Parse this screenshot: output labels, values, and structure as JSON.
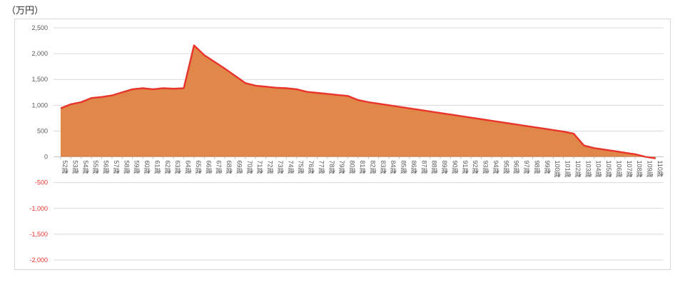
{
  "unit_label": "（万円）",
  "chart_data": {
    "type": "area",
    "title": "",
    "xlabel": "",
    "ylabel": "",
    "ylim": [
      -2000,
      2500
    ],
    "y_ticks": [
      2500,
      2000,
      1500,
      1000,
      500,
      0,
      -500,
      -1000,
      -1500,
      -2000
    ],
    "y_tick_labels": [
      "2,500",
      "2,000",
      "1,500",
      "1,000",
      "500",
      "0",
      "-500",
      "-1,000",
      "-1,500",
      "-2,000"
    ],
    "grid": true,
    "legend": "none",
    "categories": [
      "52歳",
      "53歳",
      "54歳",
      "55歳",
      "56歳",
      "57歳",
      "58歳",
      "59歳",
      "60歳",
      "61歳",
      "62歳",
      "63歳",
      "64歳",
      "65歳",
      "66歳",
      "67歳",
      "68歳",
      "69歳",
      "70歳",
      "71歳",
      "72歳",
      "73歳",
      "74歳",
      "75歳",
      "76歳",
      "77歳",
      "78歳",
      "79歳",
      "80歳",
      "81歳",
      "82歳",
      "83歳",
      "84歳",
      "85歳",
      "86歳",
      "87歳",
      "88歳",
      "89歳",
      "90歳",
      "91歳",
      "92歳",
      "93歳",
      "94歳",
      "95歳",
      "96歳",
      "97歳",
      "98歳",
      "99歳",
      "100歳",
      "101歳",
      "102歳",
      "103歳",
      "104歳",
      "105歳",
      "106歳",
      "107歳",
      "108歳",
      "109歳",
      "110歳"
    ],
    "series": [
      {
        "values": [
          940,
          1020,
          1060,
          1140,
          1160,
          1190,
          1250,
          1310,
          1330,
          1310,
          1330,
          1320,
          1330,
          2160,
          1970,
          1840,
          1710,
          1570,
          1430,
          1380,
          1360,
          1340,
          1330,
          1310,
          1260,
          1240,
          1220,
          1200,
          1180,
          1100,
          1060,
          1030,
          1000,
          970,
          940,
          910,
          880,
          850,
          820,
          790,
          760,
          730,
          700,
          670,
          640,
          610,
          580,
          550,
          520,
          490,
          450,
          220,
          170,
          140,
          110,
          80,
          50,
          0,
          -30
        ]
      }
    ],
    "colors": {
      "fill": "#e0874a",
      "line": "#e8342b",
      "axis_positive": "#595959",
      "axis_negative": "#e8342b",
      "grid": "#d9d9d9"
    }
  }
}
